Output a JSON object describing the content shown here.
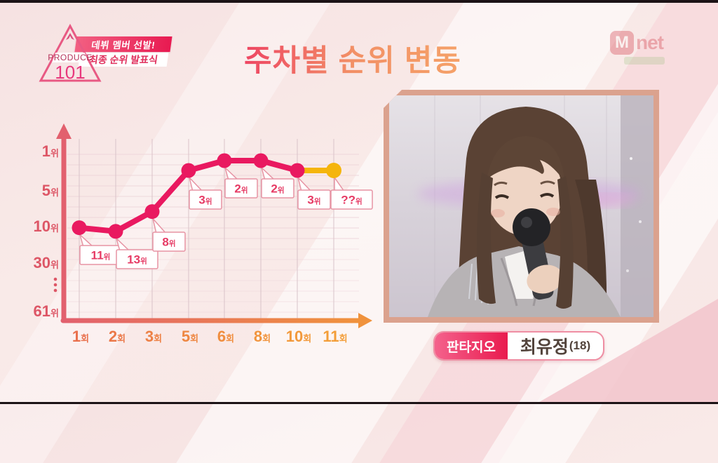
{
  "header": {
    "logo": {
      "line1": "PRODUCE",
      "line2": "101"
    },
    "badge": {
      "line1": "데뷔 멤버 선발!",
      "line2": "최종 순위 발표식"
    },
    "title": "주차별 순위 변동",
    "channel_m": "M",
    "channel_net": "net"
  },
  "chart_data": {
    "type": "line",
    "title": "주차별 순위 변동",
    "x_axis_note": "episode number, 회 = episode",
    "y_axis_note": "rank (1위 top, 61위 bottom), 위 = rank",
    "x_ticks": [
      {
        "num": "1",
        "suffix": "회"
      },
      {
        "num": "2",
        "suffix": "회"
      },
      {
        "num": "3",
        "suffix": "회"
      },
      {
        "num": "5",
        "suffix": "회"
      },
      {
        "num": "6",
        "suffix": "회"
      },
      {
        "num": "8",
        "suffix": "회"
      },
      {
        "num": "10",
        "suffix": "회"
      },
      {
        "num": "11",
        "suffix": "회"
      }
    ],
    "y_ticks": [
      {
        "num": "1",
        "suffix": "위",
        "rank": 1
      },
      {
        "num": "5",
        "suffix": "위",
        "rank": 5
      },
      {
        "num": "10",
        "suffix": "위",
        "rank": 10
      },
      {
        "num": "30",
        "suffix": "위",
        "rank": 30
      },
      {
        "num": "⋮",
        "suffix": "",
        "rank": null
      },
      {
        "num": "61",
        "suffix": "위",
        "rank": 61
      }
    ],
    "series": [
      {
        "name": "최유정",
        "points": [
          {
            "episode": "1회",
            "rank": 11,
            "num": "11",
            "suffix": "위",
            "highlight": false
          },
          {
            "episode": "2회",
            "rank": 13,
            "num": "13",
            "suffix": "위",
            "highlight": false
          },
          {
            "episode": "3회",
            "rank": 8,
            "num": "8",
            "suffix": "위",
            "highlight": false
          },
          {
            "episode": "5회",
            "rank": 3,
            "num": "3",
            "suffix": "위",
            "highlight": false
          },
          {
            "episode": "6회",
            "rank": 2,
            "num": "2",
            "suffix": "위",
            "highlight": false
          },
          {
            "episode": "8회",
            "rank": 2,
            "num": "2",
            "suffix": "위",
            "highlight": false
          },
          {
            "episode": "10회",
            "rank": 3,
            "num": "3",
            "suffix": "위",
            "highlight": false
          },
          {
            "episode": "11회",
            "rank": null,
            "num": "??",
            "suffix": "위",
            "highlight": true
          }
        ]
      }
    ],
    "colors": {
      "line": "#e91960",
      "highlight": "#f5b50c",
      "axis_y": "#e2606e",
      "axis_x_end": "#f0923c",
      "tick_y": "#dd5666",
      "label_text": "#e63a64",
      "label_border": "#e794a4"
    },
    "grid": true,
    "legend": false
  },
  "contestant": {
    "agency": "판타지오",
    "name": "최유정",
    "age": "(18)"
  }
}
